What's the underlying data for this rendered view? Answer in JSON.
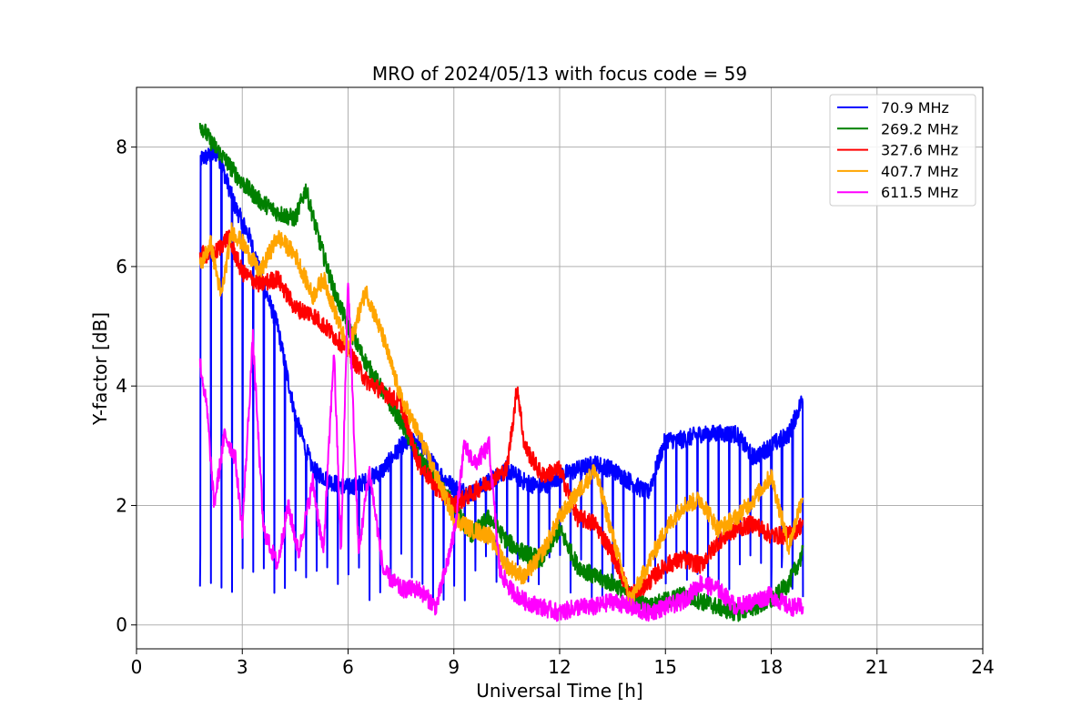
{
  "chart_data": {
    "type": "line",
    "title": "MRO of 2024/05/13 with focus code = 59",
    "xlabel": "Universal Time [h]",
    "ylabel": "Y-factor [dB]",
    "xlim": [
      0,
      24
    ],
    "ylim": [
      -0.4,
      9.0
    ],
    "xticks": [
      0,
      3,
      6,
      9,
      12,
      15,
      18,
      21,
      24
    ],
    "yticks": [
      0,
      2,
      4,
      6,
      8
    ],
    "grid": true,
    "legend_position": "top-right",
    "series": [
      {
        "name": " 70.9 MHz",
        "color": "#0000ff",
        "x": [
          1.8,
          2.3,
          2.8,
          3.2,
          3.6,
          4.0,
          4.5,
          5.0,
          5.5,
          6.0,
          6.5,
          7.0,
          7.5,
          8.0,
          8.5,
          9.0,
          9.5,
          10.0,
          10.5,
          11.0,
          11.5,
          12.0,
          12.5,
          13.0,
          13.5,
          14.0,
          14.5,
          15.0,
          15.5,
          16.0,
          16.5,
          17.0,
          17.5,
          18.0,
          18.5,
          18.9
        ],
        "y": [
          7.8,
          7.9,
          7.0,
          6.5,
          5.7,
          5.0,
          3.5,
          2.6,
          2.4,
          2.3,
          2.4,
          2.6,
          3.0,
          3.1,
          2.6,
          2.3,
          2.2,
          2.4,
          2.6,
          2.4,
          2.3,
          2.5,
          2.6,
          2.7,
          2.6,
          2.4,
          2.2,
          3.1,
          3.1,
          3.2,
          3.2,
          3.2,
          2.8,
          3.0,
          3.2,
          3.8
        ],
        "dip_period_h": 0.3,
        "dip_floor": 0.4
      },
      {
        "name": " 269.2 MHz",
        "color": "#008000",
        "x": [
          1.8,
          2.1,
          2.5,
          3.0,
          3.5,
          4.0,
          4.5,
          4.8,
          5.2,
          5.6,
          6.0,
          6.5,
          7.0,
          7.5,
          8.0,
          8.5,
          9.0,
          9.5,
          10.0,
          10.5,
          11.0,
          11.5,
          12.0,
          12.5,
          13.0,
          13.5,
          14.0,
          14.5,
          15.0,
          15.5,
          16.0,
          16.5,
          17.0,
          17.5,
          18.0,
          18.5,
          18.9
        ],
        "y": [
          8.4,
          8.1,
          7.8,
          7.4,
          7.1,
          6.9,
          6.8,
          7.3,
          6.4,
          5.6,
          5.0,
          4.4,
          3.9,
          3.4,
          2.8,
          2.4,
          2.0,
          1.5,
          1.8,
          1.4,
          1.2,
          1.1,
          1.6,
          1.0,
          0.8,
          0.7,
          0.5,
          0.3,
          0.4,
          0.5,
          0.4,
          0.3,
          0.2,
          0.3,
          0.4,
          0.7,
          1.2
        ]
      },
      {
        "name": " 327.6 MHz",
        "color": "#ff0000",
        "x": [
          1.8,
          2.2,
          2.6,
          3.0,
          3.5,
          4.0,
          4.5,
          5.0,
          5.5,
          6.0,
          6.5,
          7.0,
          7.5,
          8.0,
          8.5,
          9.0,
          9.5,
          10.0,
          10.5,
          10.8,
          11.0,
          11.5,
          12.0,
          12.5,
          13.0,
          13.5,
          14.0,
          14.5,
          15.0,
          15.5,
          16.0,
          16.5,
          17.0,
          17.5,
          18.0,
          18.5,
          18.9
        ],
        "y": [
          6.2,
          6.2,
          6.5,
          5.9,
          5.7,
          5.8,
          5.3,
          5.2,
          4.9,
          4.6,
          4.1,
          3.9,
          3.7,
          2.7,
          2.3,
          2.0,
          2.2,
          2.4,
          2.6,
          4.0,
          3.0,
          2.5,
          2.6,
          1.8,
          1.7,
          1.2,
          0.5,
          0.7,
          1.0,
          1.1,
          1.0,
          1.4,
          1.6,
          1.7,
          1.5,
          1.5,
          1.7
        ]
      },
      {
        "name": " 407.7 MHz",
        "color": "#ffa500",
        "x": [
          1.8,
          2.1,
          2.4,
          2.7,
          3.0,
          3.5,
          4.0,
          4.5,
          5.0,
          5.3,
          5.6,
          6.0,
          6.5,
          7.0,
          7.5,
          8.0,
          8.5,
          9.0,
          9.5,
          10.0,
          10.5,
          11.0,
          11.5,
          12.0,
          12.5,
          13.0,
          13.5,
          14.0,
          14.5,
          15.0,
          15.5,
          16.0,
          16.5,
          17.0,
          17.5,
          18.0,
          18.5,
          18.9
        ],
        "y": [
          6.0,
          6.4,
          5.5,
          6.6,
          6.4,
          5.9,
          6.5,
          6.2,
          5.5,
          5.8,
          5.3,
          4.6,
          5.6,
          4.8,
          3.8,
          3.2,
          2.5,
          1.8,
          1.6,
          1.5,
          1.0,
          0.8,
          1.2,
          1.8,
          2.2,
          2.6,
          1.5,
          0.4,
          1.0,
          1.6,
          2.0,
          2.1,
          1.6,
          1.8,
          2.1,
          2.5,
          1.3,
          2.2
        ]
      },
      {
        "name": " 611.5 MHz",
        "color": "#ff00ff",
        "x": [
          1.8,
          2.0,
          2.2,
          2.5,
          2.8,
          3.0,
          3.3,
          3.6,
          4.0,
          4.3,
          4.6,
          5.0,
          5.3,
          5.6,
          5.8,
          6.0,
          6.3,
          6.6,
          7.0,
          7.5,
          8.0,
          8.5,
          9.0,
          9.3,
          9.6,
          10.0,
          10.3,
          10.6,
          11.0,
          11.5,
          12.0,
          12.5,
          13.0,
          13.5,
          14.0,
          14.5,
          15.0,
          15.5,
          16.0,
          16.5,
          17.0,
          17.5,
          18.0,
          18.5,
          18.9
        ],
        "y": [
          4.4,
          3.6,
          2.0,
          3.2,
          2.8,
          1.6,
          4.8,
          1.6,
          1.0,
          2.0,
          1.2,
          2.4,
          1.2,
          4.6,
          1.2,
          5.8,
          1.2,
          2.6,
          0.9,
          0.6,
          0.6,
          0.3,
          1.5,
          3.0,
          2.7,
          3.0,
          0.9,
          0.6,
          0.4,
          0.3,
          0.2,
          0.3,
          0.3,
          0.4,
          0.3,
          0.2,
          0.3,
          0.4,
          0.7,
          0.6,
          0.3,
          0.4,
          0.5,
          0.3,
          0.3
        ]
      }
    ]
  }
}
